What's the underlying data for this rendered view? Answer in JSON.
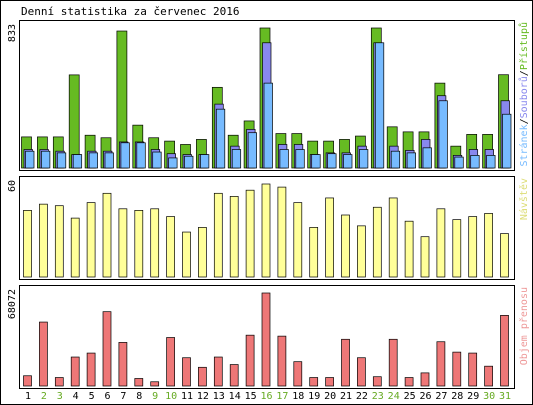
{
  "title": "Denní statistika za červenec 2016",
  "colors": {
    "frame": "#000000",
    "hits": "#66bb22",
    "files": "#8888ee",
    "pages": "#77bbff",
    "visits": "#ffff99",
    "kbytes": "#ee7777",
    "weekend_day_label": "#66aa22",
    "weekday_label": "#000000",
    "kbytes_label": "#ee9999",
    "visits_label": "#dddd77"
  },
  "chart_data": {
    "type": "bar",
    "categories": [
      "1",
      "2",
      "3",
      "4",
      "5",
      "6",
      "7",
      "8",
      "9",
      "10",
      "11",
      "12",
      "13",
      "14",
      "15",
      "16",
      "17",
      "18",
      "19",
      "20",
      "21",
      "22",
      "23",
      "24",
      "25",
      "26",
      "27",
      "28",
      "29",
      "30",
      "31"
    ],
    "weekend_days": [
      "2",
      "3",
      "9",
      "10",
      "16",
      "17",
      "23",
      "24",
      "30",
      "31"
    ],
    "panels": [
      {
        "id": "requests",
        "ymax_label": "833",
        "ymax": 833,
        "legend": {
          "pages": "Stránek",
          "sep1": "/",
          "files": "Souborů",
          "sep2": "/",
          "hits": "Přístupů"
        },
        "series": [
          {
            "name": "Přístupů",
            "values": [
              185,
              185,
              185,
              554,
              195,
              180,
              815,
              255,
              180,
              160,
              140,
              170,
              480,
              195,
              280,
              833,
              205,
              205,
              160,
              160,
              170,
              190,
              833,
              245,
              215,
              215,
              505,
              130,
              200,
              200,
              555
            ]
          },
          {
            "name": "Souborů",
            "values": [
              110,
              110,
              100,
              80,
              100,
              100,
              155,
              155,
              110,
              85,
              80,
              80,
              380,
              130,
              230,
              745,
              140,
              140,
              80,
              90,
              90,
              130,
              745,
              130,
              105,
              170,
              430,
              75,
              110,
              110,
              400
            ]
          },
          {
            "name": "Stránek",
            "values": [
              100,
              100,
              90,
              80,
              90,
              90,
              150,
              150,
              95,
              60,
              70,
              80,
              350,
              110,
              210,
              505,
              110,
              110,
              80,
              85,
              80,
              110,
              745,
              100,
              90,
              120,
              400,
              65,
              75,
              75,
              320
            ]
          }
        ]
      },
      {
        "id": "visits",
        "ymax_label": "60",
        "ymax": 60,
        "legend": {
          "visits": "Návštěv"
        },
        "series": [
          {
            "name": "Návštěv",
            "values": [
              43,
              47,
              46,
              38,
              48,
              54,
              44,
              43,
              44,
              39,
              29,
              32,
              54,
              52,
              56,
              60,
              58,
              48,
              32,
              51,
              40,
              33,
              45,
              51,
              36,
              26,
              44,
              37,
              39,
              41,
              28
            ]
          }
        ]
      },
      {
        "id": "kbytes",
        "ymax_label": "68072",
        "ymax": 68072,
        "legend": {
          "kbytes": "Objem přenosu"
        },
        "series": [
          {
            "name": "Objem přenosu",
            "values": [
              7500,
              46800,
              6200,
              21200,
              24100,
              54400,
              31900,
              5500,
              3100,
              35500,
              20700,
              13700,
              21200,
              15700,
              37200,
              68072,
              36500,
              17800,
              6200,
              6200,
              34200,
              20700,
              6800,
              34200,
              6200,
              9600,
              32400,
              24800,
              24100,
              14500,
              51700
            ]
          }
        ]
      }
    ]
  }
}
